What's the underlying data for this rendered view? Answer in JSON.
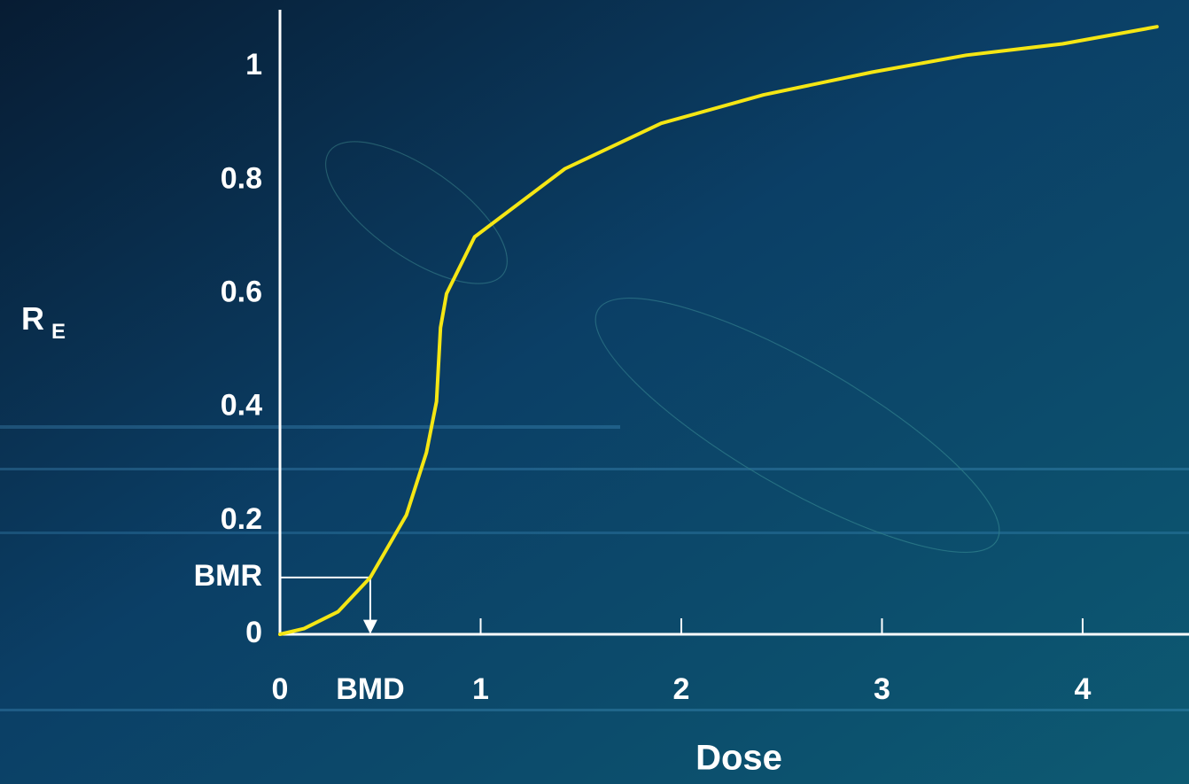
{
  "chart_data": {
    "type": "line",
    "x_label": "Dose",
    "y_label": "R",
    "y_label_subscript": "E",
    "xlim": [
      0,
      4.53
    ],
    "ylim": [
      0,
      1.1
    ],
    "xticks": [
      0,
      {
        "value": 0.45,
        "label": "BMD"
      },
      1,
      2,
      3,
      4
    ],
    "yticks": [
      0,
      {
        "value": 0.1,
        "label": "BMR"
      },
      0.2,
      0.4,
      0.6,
      0.8,
      1
    ],
    "series": [
      {
        "color": "#f5e614",
        "x": [
          0,
          0.12,
          0.29,
          0.45,
          0.63,
          0.73,
          0.78,
          0.8,
          0.83,
          0.97,
          1.42,
          1.9,
          2.41,
          2.95,
          3.42,
          3.9,
          4.37
        ],
        "values": [
          0,
          0.01,
          0.04,
          0.1,
          0.21,
          0.32,
          0.41,
          0.54,
          0.6,
          0.7,
          0.82,
          0.9,
          0.95,
          0.99,
          1.02,
          1.04,
          1.07
        ]
      }
    ]
  }
}
